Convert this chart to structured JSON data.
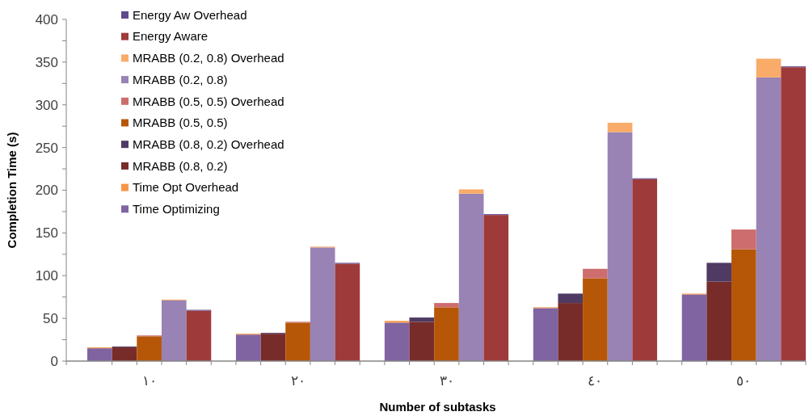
{
  "chart_data": {
    "type": "bar",
    "stacked": true,
    "xlabel": "Number of subtasks",
    "ylabel": "Completion Time (s)",
    "categories": [
      null,
      null,
      "١٠",
      null,
      null,
      null,
      null,
      null,
      "٢٠",
      null,
      null,
      null,
      null,
      null,
      "٣٠",
      null,
      null,
      null,
      null,
      null,
      "٤٠",
      null,
      null,
      null,
      null,
      null,
      "٥٠",
      null,
      null
    ],
    "ylim": [
      0,
      400
    ],
    "yticks": [
      0,
      {
        "value": 25,
        "label": null
      },
      50,
      {
        "value": 75,
        "label": null
      },
      100,
      {
        "value": 125,
        "label": null
      },
      150,
      {
        "value": 175,
        "label": null
      },
      200,
      {
        "value": 225,
        "label": null
      },
      250,
      {
        "value": 275,
        "label": null
      },
      300,
      {
        "value": 325,
        "label": null
      },
      350,
      {
        "value": 375,
        "label": null
      },
      400
    ],
    "grid": false,
    "legend": "top left",
    "series": [
      {
        "name": "Time Optimizing",
        "color": "#8064a2",
        "values": [
          15,
          null,
          null,
          null,
          null,
          null,
          31,
          null,
          null,
          null,
          null,
          null,
          45,
          null,
          null,
          null,
          null,
          null,
          62,
          null,
          null,
          null,
          null,
          null,
          78,
          null,
          null,
          null,
          null
        ]
      },
      {
        "name": "Time Opt Overhead",
        "color": "#f79646",
        "values": [
          1,
          null,
          null,
          null,
          null,
          null,
          1,
          null,
          null,
          null,
          null,
          null,
          2,
          null,
          null,
          null,
          null,
          null,
          1,
          null,
          null,
          null,
          null,
          null,
          1,
          null,
          null,
          null,
          null
        ]
      },
      {
        "name": "MRABB (0.8, 0.2)",
        "color": "#772c2a",
        "values": [
          null,
          16,
          null,
          null,
          null,
          null,
          null,
          32,
          null,
          null,
          null,
          null,
          null,
          46,
          null,
          null,
          null,
          null,
          null,
          68,
          null,
          null,
          null,
          null,
          null,
          93,
          null,
          null,
          null
        ]
      },
      {
        "name": "MRABB (0.8, 0.2)  Overhead",
        "color": "#4f3a63",
        "values": [
          null,
          1,
          null,
          null,
          null,
          null,
          null,
          1,
          null,
          null,
          null,
          null,
          null,
          5,
          null,
          null,
          null,
          null,
          null,
          11,
          null,
          null,
          null,
          null,
          null,
          22,
          null,
          null,
          null
        ]
      },
      {
        "name": "MRABB (0.5, 0.5)",
        "color": "#b65708",
        "values": [
          null,
          null,
          29,
          null,
          null,
          null,
          null,
          null,
          45,
          null,
          null,
          null,
          null,
          null,
          63,
          null,
          null,
          null,
          null,
          null,
          97,
          null,
          null,
          null,
          null,
          null,
          131,
          null,
          null
        ]
      },
      {
        "name": "MRABB (0.5, 0.5)  Overhead",
        "color": "#cd6d6d",
        "values": [
          null,
          null,
          1,
          null,
          null,
          null,
          null,
          null,
          1,
          null,
          null,
          null,
          null,
          null,
          5,
          null,
          null,
          null,
          null,
          null,
          11,
          null,
          null,
          null,
          null,
          null,
          23,
          null,
          null
        ]
      },
      {
        "name": "MRABB (0.2, 0.8)",
        "color": "#9983b5",
        "values": [
          null,
          null,
          null,
          71,
          null,
          null,
          null,
          null,
          null,
          133,
          null,
          null,
          null,
          null,
          null,
          196,
          null,
          null,
          null,
          null,
          null,
          268,
          null,
          null,
          null,
          null,
          null,
          332,
          null
        ]
      },
      {
        "name": "MRABB (0.2, 0.8)  Overhead",
        "color": "#f9ab6a",
        "values": [
          null,
          null,
          null,
          1,
          null,
          null,
          null,
          null,
          null,
          1,
          null,
          null,
          null,
          null,
          null,
          5,
          null,
          null,
          null,
          null,
          null,
          11,
          null,
          null,
          null,
          null,
          null,
          22,
          null
        ]
      },
      {
        "name": "Energy Aware",
        "color": "#9e3a3a",
        "values": [
          null,
          null,
          null,
          null,
          59,
          null,
          null,
          null,
          null,
          null,
          114,
          null,
          null,
          null,
          null,
          null,
          171,
          null,
          null,
          null,
          null,
          null,
          213,
          null,
          null,
          null,
          null,
          null,
          344
        ]
      },
      {
        "name": "Energy Aw Overhead",
        "color": "#5f4a8b",
        "values": [
          null,
          null,
          null,
          null,
          1,
          null,
          null,
          null,
          null,
          null,
          1,
          null,
          null,
          null,
          null,
          null,
          1,
          null,
          null,
          null,
          null,
          null,
          1,
          null,
          null,
          null,
          null,
          null,
          1
        ]
      }
    ]
  }
}
